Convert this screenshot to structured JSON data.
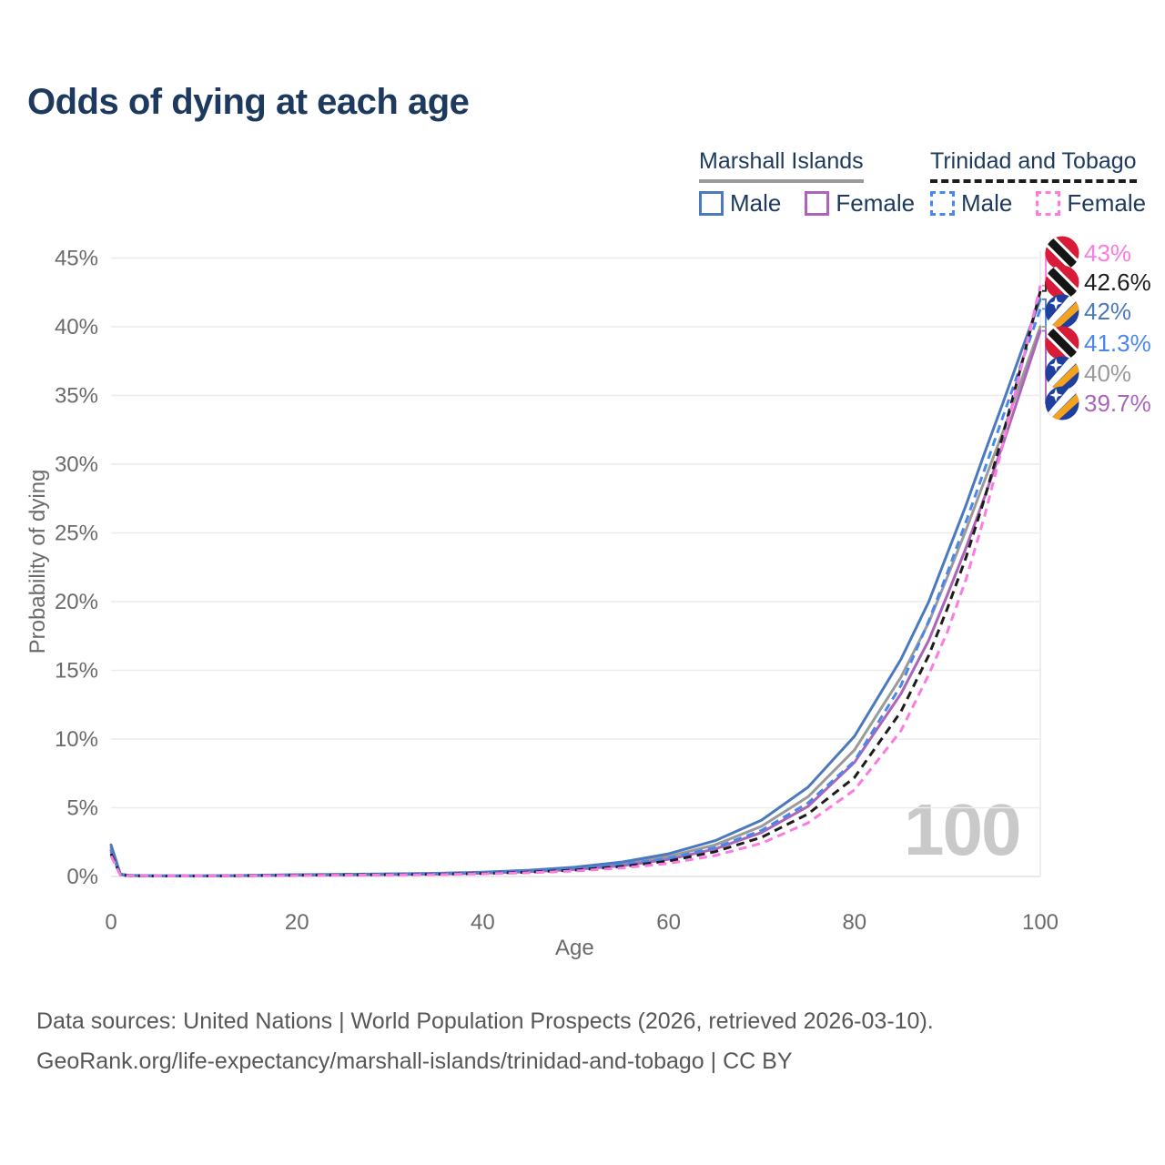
{
  "page": {
    "title": "Odds of dying at each age"
  },
  "legend": {
    "groups": [
      {
        "country": "Marshall Islands",
        "line_style": "solid",
        "line_color": "#9a9a9a",
        "items": [
          {
            "label": "Male",
            "color": "#4b79bd",
            "dashed": false
          },
          {
            "label": "Female",
            "color": "#ab64b8",
            "dashed": false
          }
        ]
      },
      {
        "country": "Trinidad and Tobago",
        "line_style": "dashed",
        "line_color": "#1c1c1c",
        "items": [
          {
            "label": "Male",
            "color": "#4a87ec",
            "dashed": true
          },
          {
            "label": "Female",
            "color": "#fb7be1",
            "dashed": true
          }
        ]
      }
    ]
  },
  "watermark": "100",
  "footer": {
    "line1": "Data sources: United Nations | World Population Prospects (2026, retrieved 2026-03-10).",
    "line2": "GeoRank.org/life-expectancy/marshall-islands/trinidad-and-tobago | CC BY"
  },
  "chart_data": {
    "type": "line",
    "title": "Odds of dying at each age",
    "xlabel": "Age",
    "ylabel": "Probability of dying",
    "xlim": [
      0,
      100
    ],
    "ylim": [
      0,
      45
    ],
    "x_ticks": [
      0,
      20,
      40,
      60,
      80,
      100
    ],
    "y_ticks": [
      0,
      5,
      10,
      15,
      20,
      25,
      30,
      35,
      40,
      45
    ],
    "y_tick_suffix": "%",
    "grid": "horizontal",
    "hovered_age_label": "100",
    "legend_position": "top-right",
    "series": [
      {
        "name": "Marshall Islands Both sexes",
        "country": "Marshall Islands",
        "sex": "Both",
        "flag": "marshall-islands",
        "color": "#9a9a9a",
        "dashed": false,
        "end_label": "40%",
        "end_value": 40.0,
        "points": [
          [
            0,
            2.1
          ],
          [
            1,
            0.16
          ],
          [
            2,
            0.07
          ],
          [
            5,
            0.045
          ],
          [
            10,
            0.045
          ],
          [
            15,
            0.07
          ],
          [
            20,
            0.11
          ],
          [
            25,
            0.135
          ],
          [
            30,
            0.165
          ],
          [
            35,
            0.2
          ],
          [
            40,
            0.27
          ],
          [
            45,
            0.4
          ],
          [
            50,
            0.59
          ],
          [
            55,
            0.92
          ],
          [
            60,
            1.45
          ],
          [
            65,
            2.3
          ],
          [
            70,
            3.65
          ],
          [
            75,
            5.8
          ],
          [
            80,
            9.2
          ],
          [
            85,
            14.5
          ],
          [
            88,
            18.5
          ],
          [
            90,
            21.8
          ],
          [
            92,
            25.2
          ],
          [
            94,
            28.8
          ],
          [
            96,
            32.4
          ],
          [
            98,
            36.2
          ],
          [
            100,
            40.0
          ]
        ]
      },
      {
        "name": "Marshall Islands Female",
        "country": "Marshall Islands",
        "sex": "Female",
        "flag": "marshall-islands",
        "color": "#ab64b8",
        "dashed": false,
        "end_label": "39.7%",
        "end_value": 39.7,
        "points": [
          [
            0,
            1.9
          ],
          [
            1,
            0.14
          ],
          [
            2,
            0.06
          ],
          [
            5,
            0.04
          ],
          [
            10,
            0.04
          ],
          [
            15,
            0.06
          ],
          [
            20,
            0.09
          ],
          [
            25,
            0.11
          ],
          [
            30,
            0.14
          ],
          [
            35,
            0.17
          ],
          [
            40,
            0.24
          ],
          [
            45,
            0.35
          ],
          [
            50,
            0.51
          ],
          [
            55,
            0.79
          ],
          [
            60,
            1.25
          ],
          [
            65,
            2.0
          ],
          [
            70,
            3.2
          ],
          [
            75,
            5.1
          ],
          [
            80,
            8.3
          ],
          [
            85,
            13.3
          ],
          [
            88,
            17.2
          ],
          [
            90,
            20.5
          ],
          [
            92,
            23.9
          ],
          [
            94,
            27.6
          ],
          [
            96,
            31.5
          ],
          [
            98,
            35.6
          ],
          [
            100,
            39.7
          ]
        ]
      },
      {
        "name": "Marshall Islands Male",
        "country": "Marshall Islands",
        "sex": "Male",
        "flag": "marshall-islands",
        "color": "#4b79bd",
        "dashed": false,
        "end_label": "42%",
        "end_value": 42.0,
        "points": [
          [
            0,
            2.3
          ],
          [
            1,
            0.18
          ],
          [
            2,
            0.08
          ],
          [
            5,
            0.05
          ],
          [
            10,
            0.05
          ],
          [
            15,
            0.08
          ],
          [
            20,
            0.13
          ],
          [
            25,
            0.16
          ],
          [
            30,
            0.19
          ],
          [
            35,
            0.23
          ],
          [
            40,
            0.31
          ],
          [
            45,
            0.46
          ],
          [
            50,
            0.68
          ],
          [
            55,
            1.05
          ],
          [
            60,
            1.65
          ],
          [
            65,
            2.6
          ],
          [
            70,
            4.1
          ],
          [
            75,
            6.5
          ],
          [
            80,
            10.2
          ],
          [
            85,
            15.8
          ],
          [
            88,
            20.0
          ],
          [
            90,
            23.5
          ],
          [
            92,
            27.0
          ],
          [
            94,
            30.8
          ],
          [
            96,
            34.5
          ],
          [
            98,
            38.3
          ],
          [
            100,
            42.0
          ]
        ]
      },
      {
        "name": "Trinidad and Tobago Male",
        "country": "Trinidad and Tobago",
        "sex": "Male",
        "flag": "trinidad-and-tobago",
        "color": "#4a87ec",
        "dashed": true,
        "end_label": "41.3%",
        "end_value": 41.3,
        "points": [
          [
            0,
            1.8
          ],
          [
            1,
            0.12
          ],
          [
            2,
            0.06
          ],
          [
            5,
            0.04
          ],
          [
            10,
            0.04
          ],
          [
            15,
            0.07
          ],
          [
            20,
            0.12
          ],
          [
            25,
            0.14
          ],
          [
            30,
            0.16
          ],
          [
            35,
            0.2
          ],
          [
            40,
            0.26
          ],
          [
            45,
            0.38
          ],
          [
            50,
            0.56
          ],
          [
            55,
            0.86
          ],
          [
            60,
            1.32
          ],
          [
            65,
            2.1
          ],
          [
            70,
            3.35
          ],
          [
            75,
            5.35
          ],
          [
            80,
            8.4
          ],
          [
            85,
            13.9
          ],
          [
            88,
            18.6
          ],
          [
            90,
            22.1
          ],
          [
            92,
            25.8
          ],
          [
            94,
            29.6
          ],
          [
            96,
            33.5
          ],
          [
            98,
            37.4
          ],
          [
            100,
            41.3
          ]
        ]
      },
      {
        "name": "Trinidad and Tobago Both sexes",
        "country": "Trinidad and Tobago",
        "sex": "Both",
        "flag": "trinidad-and-tobago",
        "color": "#1c1c1c",
        "dashed": true,
        "end_label": "42.6%",
        "end_value": 42.6,
        "points": [
          [
            0,
            1.65
          ],
          [
            1,
            0.11
          ],
          [
            2,
            0.05
          ],
          [
            5,
            0.035
          ],
          [
            10,
            0.035
          ],
          [
            15,
            0.06
          ],
          [
            20,
            0.09
          ],
          [
            25,
            0.11
          ],
          [
            30,
            0.13
          ],
          [
            35,
            0.165
          ],
          [
            40,
            0.22
          ],
          [
            45,
            0.32
          ],
          [
            50,
            0.47
          ],
          [
            55,
            0.73
          ],
          [
            60,
            1.12
          ],
          [
            65,
            1.8
          ],
          [
            70,
            2.85
          ],
          [
            75,
            4.55
          ],
          [
            80,
            7.2
          ],
          [
            85,
            12.0
          ],
          [
            88,
            16.1
          ],
          [
            90,
            19.5
          ],
          [
            92,
            23.2
          ],
          [
            94,
            27.5
          ],
          [
            96,
            32.2
          ],
          [
            98,
            37.3
          ],
          [
            100,
            42.6
          ]
        ]
      },
      {
        "name": "Trinidad and Tobago Female",
        "country": "Trinidad and Tobago",
        "sex": "Female",
        "flag": "trinidad-and-tobago",
        "color": "#fb7be1",
        "dashed": true,
        "end_label": "43%",
        "end_value": 43.0,
        "points": [
          [
            0,
            1.5
          ],
          [
            1,
            0.1
          ],
          [
            2,
            0.05
          ],
          [
            5,
            0.03
          ],
          [
            10,
            0.03
          ],
          [
            15,
            0.05
          ],
          [
            20,
            0.07
          ],
          [
            25,
            0.09
          ],
          [
            30,
            0.11
          ],
          [
            35,
            0.14
          ],
          [
            40,
            0.19
          ],
          [
            45,
            0.27
          ],
          [
            50,
            0.4
          ],
          [
            55,
            0.62
          ],
          [
            60,
            0.95
          ],
          [
            65,
            1.52
          ],
          [
            70,
            2.42
          ],
          [
            75,
            3.9
          ],
          [
            80,
            6.3
          ],
          [
            85,
            10.6
          ],
          [
            88,
            14.7
          ],
          [
            90,
            17.8
          ],
          [
            92,
            21.6
          ],
          [
            94,
            26.2
          ],
          [
            96,
            31.5
          ],
          [
            98,
            37.2
          ],
          [
            100,
            43.0
          ]
        ]
      }
    ]
  }
}
